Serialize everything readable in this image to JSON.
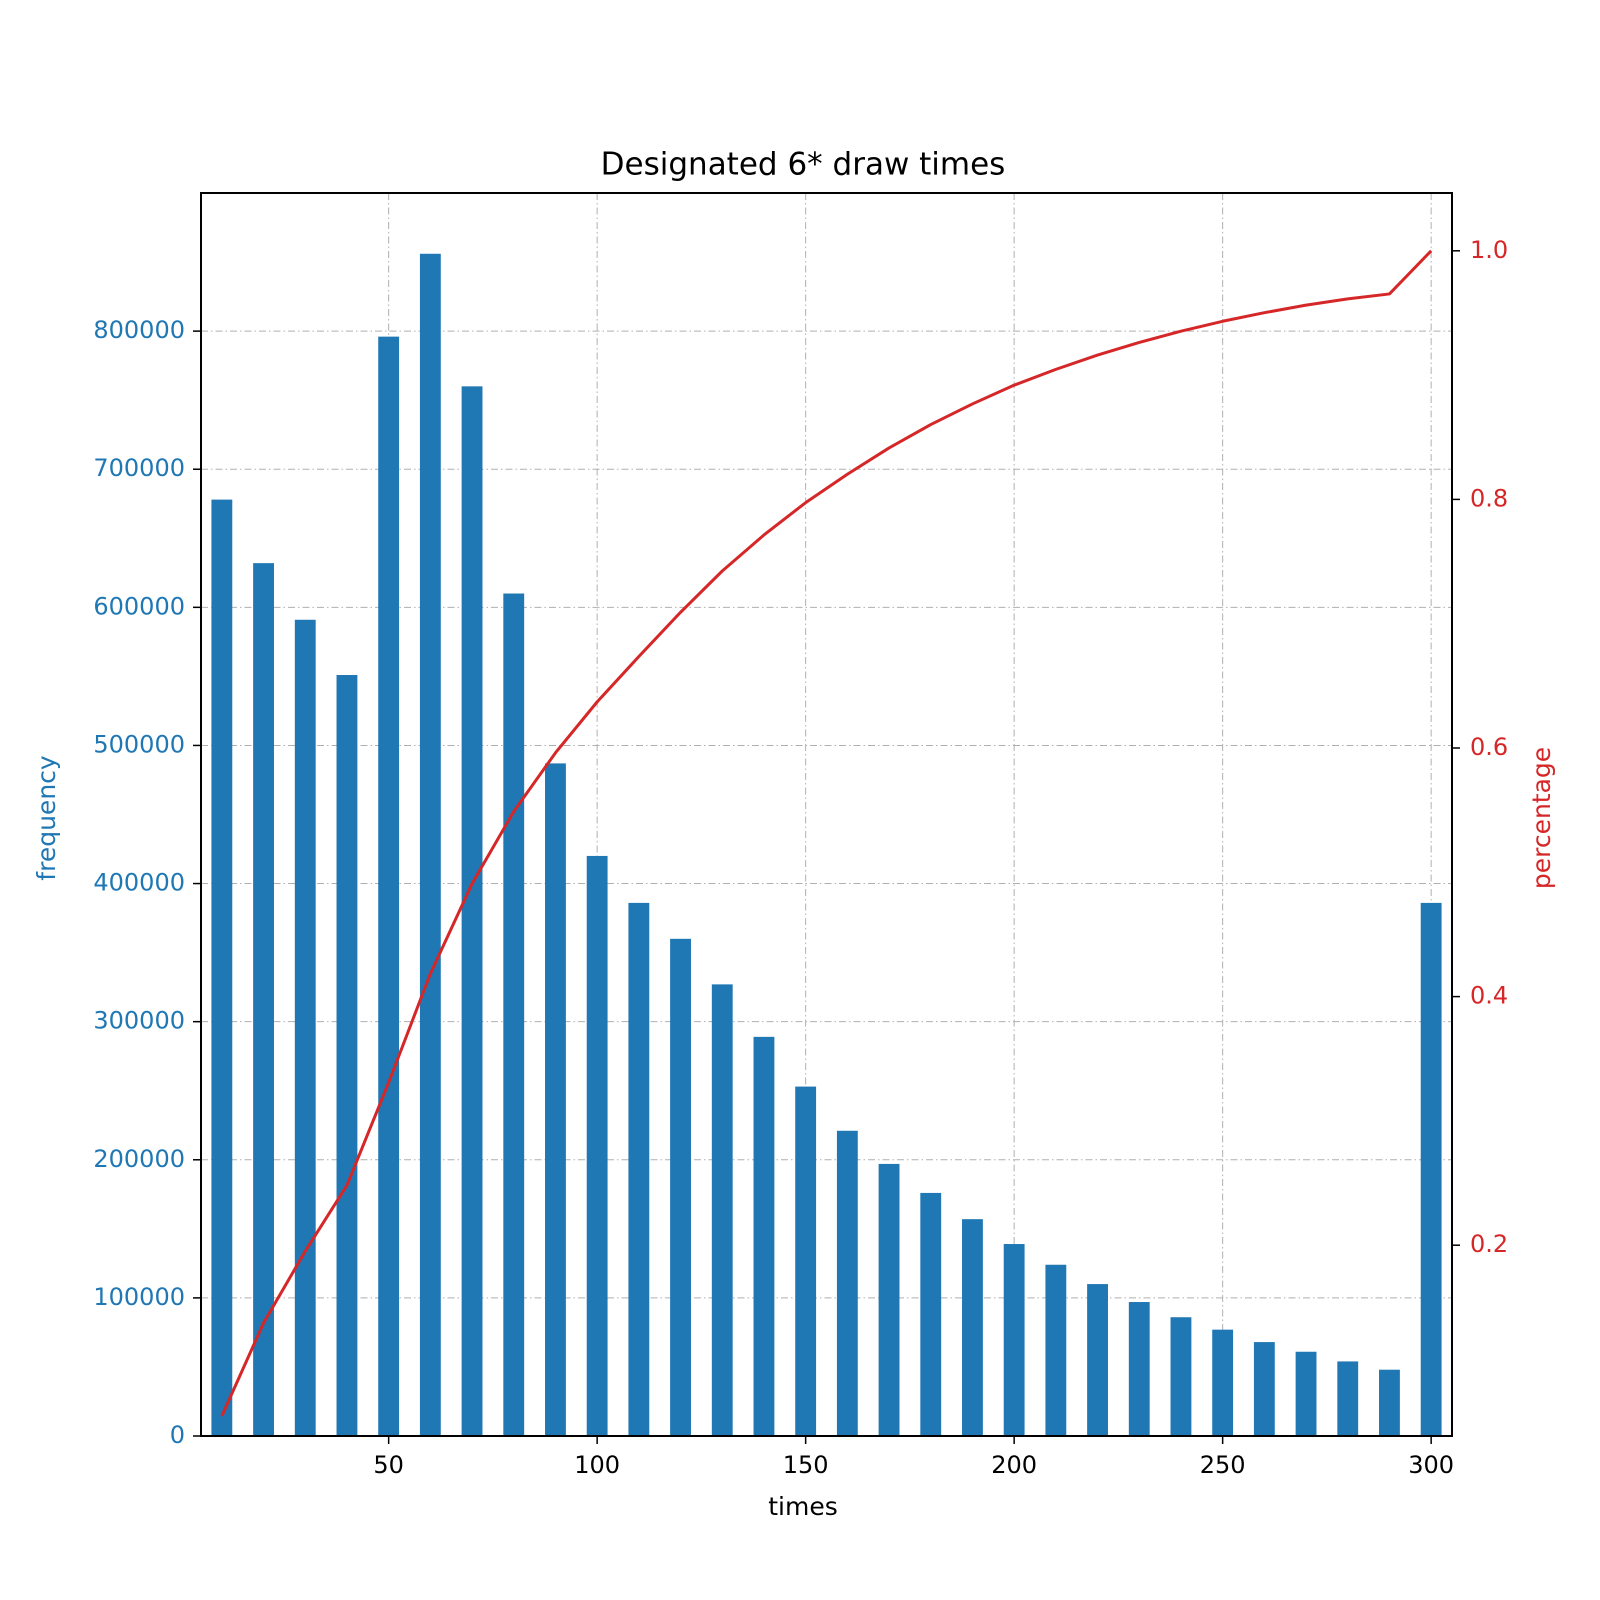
{
  "chart_data": {
    "type": "bar+line",
    "title": "Designated 6* draw times",
    "xlabel": "times",
    "ylabel_left": "frequency",
    "ylabel_right": "percentage",
    "xlim": [
      5,
      305
    ],
    "ylim_left": [
      0,
      900000
    ],
    "ylim_right": [
      0.0465,
      1.0465
    ],
    "x_ticks": [
      50,
      100,
      150,
      200,
      250,
      300
    ],
    "y_left_ticks": [
      0,
      100000,
      200000,
      300000,
      400000,
      500000,
      600000,
      700000,
      800000
    ],
    "y_right_ticks": [
      "0.2",
      "0.4",
      "0.6",
      "0.8",
      "1.0"
    ],
    "grid": true,
    "colors": {
      "bars": "#1f77b4",
      "line": "#d62728",
      "left_axis": "#1f77b4",
      "right_axis": "#d62728",
      "grid": "#b0b0b0"
    },
    "series": [
      {
        "name": "frequency",
        "type": "bar",
        "axis": "left",
        "x": [
          10,
          20,
          30,
          40,
          50,
          60,
          70,
          80,
          90,
          100,
          110,
          120,
          130,
          140,
          150,
          160,
          170,
          180,
          190,
          200,
          210,
          220,
          230,
          240,
          250,
          260,
          270,
          280,
          290,
          300
        ],
        "values": [
          678000,
          632000,
          591000,
          551000,
          796000,
          856000,
          760000,
          610000,
          487000,
          420000,
          386000,
          360000,
          327000,
          289000,
          253000,
          221000,
          197000,
          176000,
          157000,
          139000,
          124000,
          110000,
          97000,
          86000,
          77000,
          68000,
          61000,
          54000,
          48000,
          386000
        ]
      },
      {
        "name": "percentage",
        "type": "line",
        "axis": "right",
        "x": [
          10,
          20,
          30,
          40,
          50,
          60,
          70,
          80,
          90,
          100,
          110,
          120,
          130,
          140,
          150,
          160,
          170,
          180,
          190,
          200,
          210,
          220,
          230,
          240,
          250,
          260,
          270,
          280,
          290,
          300
        ],
        "values": [
          0.0626,
          0.1374,
          0.1952,
          0.2482,
          0.3308,
          0.4184,
          0.4908,
          0.5489,
          0.5961,
          0.6371,
          0.6736,
          0.7092,
          0.7424,
          0.7714,
          0.7974,
          0.8202,
          0.8414,
          0.8602,
          0.8768,
          0.8919,
          0.9046,
          0.9161,
          0.9263,
          0.9353,
          0.9433,
          0.9502,
          0.9563,
          0.9613,
          0.9653,
          1.0
        ]
      }
    ]
  }
}
